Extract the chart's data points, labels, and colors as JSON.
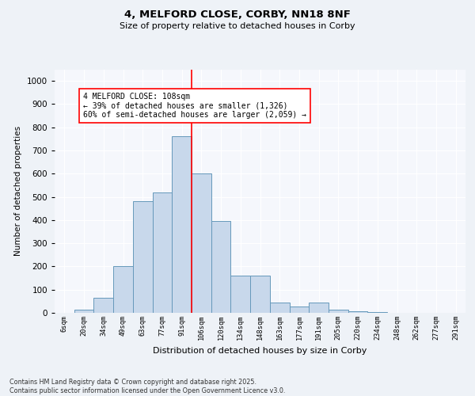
{
  "title1": "4, MELFORD CLOSE, CORBY, NN18 8NF",
  "title2": "Size of property relative to detached houses in Corby",
  "xlabel": "Distribution of detached houses by size in Corby",
  "ylabel": "Number of detached properties",
  "categories": [
    "6sqm",
    "20sqm",
    "34sqm",
    "49sqm",
    "63sqm",
    "77sqm",
    "91sqm",
    "106sqm",
    "120sqm",
    "134sqm",
    "148sqm",
    "163sqm",
    "177sqm",
    "191sqm",
    "205sqm",
    "220sqm",
    "234sqm",
    "248sqm",
    "262sqm",
    "277sqm",
    "291sqm"
  ],
  "values": [
    0,
    12,
    65,
    200,
    480,
    520,
    760,
    600,
    395,
    160,
    160,
    45,
    28,
    45,
    12,
    8,
    5,
    0,
    0,
    0,
    0
  ],
  "bar_color": "#c8d8eb",
  "bar_edge_color": "#6699bb",
  "vline_color": "red",
  "annotation_text": "4 MELFORD CLOSE: 108sqm\n← 39% of detached houses are smaller (1,326)\n60% of semi-detached houses are larger (2,059) →",
  "annotation_box_color": "white",
  "annotation_box_edge_color": "red",
  "ylim": [
    0,
    1050
  ],
  "yticks": [
    0,
    100,
    200,
    300,
    400,
    500,
    600,
    700,
    800,
    900,
    1000
  ],
  "footer": "Contains HM Land Registry data © Crown copyright and database right 2025.\nContains public sector information licensed under the Open Government Licence v3.0.",
  "background_color": "#eef2f7",
  "plot_bg_color": "#f5f7fc",
  "grid_color": "#ffffff"
}
